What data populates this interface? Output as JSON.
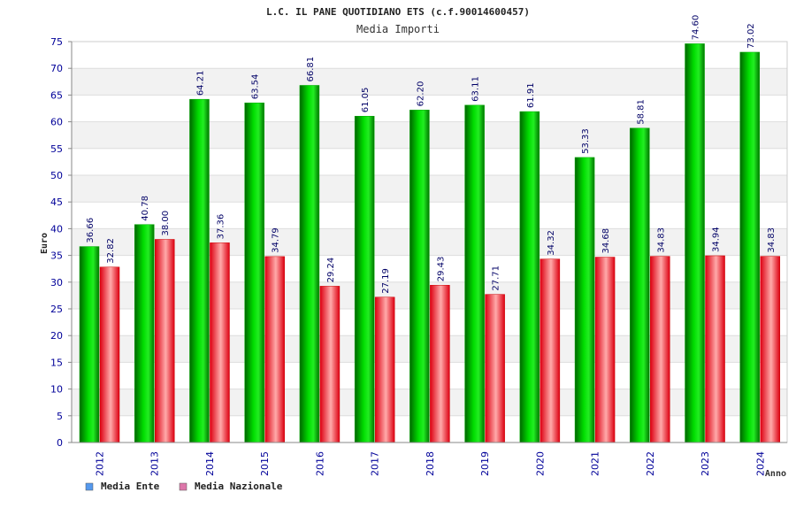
{
  "chart_data": {
    "type": "bar",
    "title": "L.C. IL PANE QUOTIDIANO ETS (c.f.90014600457)",
    "subtitle": "Media Importi",
    "ylabel": "Euro",
    "xlabel": "Anno",
    "ylim": [
      0,
      75
    ],
    "yticks": [
      0,
      5,
      10,
      15,
      20,
      25,
      30,
      35,
      40,
      45,
      50,
      55,
      60,
      65,
      70,
      75
    ],
    "categories": [
      "2012",
      "2013",
      "2014",
      "2015",
      "2016",
      "2017",
      "2018",
      "2019",
      "2020",
      "2021",
      "2022",
      "2023",
      "2024"
    ],
    "series": [
      {
        "name": "Media Ente",
        "color": "#00cc00",
        "legend_color": "#5599ee",
        "values": [
          36.66,
          40.78,
          64.21,
          63.54,
          66.81,
          61.05,
          62.2,
          63.11,
          61.91,
          53.33,
          58.81,
          74.6,
          73.02
        ],
        "labels": [
          "36.66",
          "40.78",
          "64.21",
          "63.54",
          "66.81",
          "61.05",
          "62.20",
          "63.11",
          "61.91",
          "53.33",
          "58.81",
          "74.60",
          "73.02"
        ]
      },
      {
        "name": "Media Nazionale",
        "color": "#ee1122",
        "legend_color": "#dd77aa",
        "values": [
          32.82,
          38.0,
          37.36,
          34.79,
          29.24,
          27.19,
          29.43,
          27.71,
          34.32,
          34.68,
          34.83,
          34.94,
          34.83
        ],
        "labels": [
          "32.82",
          "38.00",
          "37.36",
          "34.79",
          "29.24",
          "27.19",
          "29.43",
          "27.71",
          "34.32",
          "34.68",
          "34.83",
          "34.94",
          "34.83"
        ]
      }
    ],
    "grid": true,
    "legend_position": "bottom-left"
  }
}
